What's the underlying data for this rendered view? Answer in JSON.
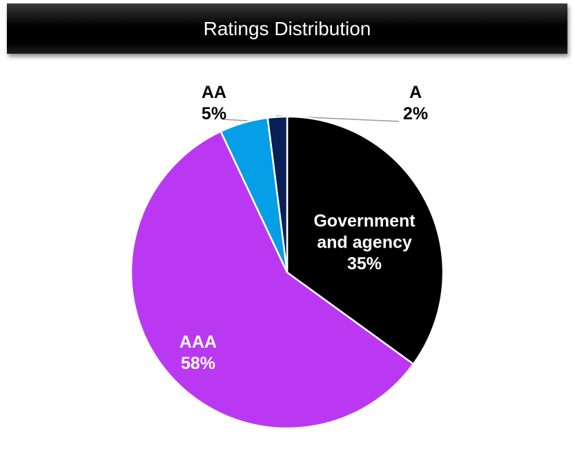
{
  "chart_data": {
    "type": "pie",
    "title": "Ratings Distribution",
    "categories": [
      "Government and agency",
      "AAA",
      "AA",
      "A"
    ],
    "values": [
      35,
      58,
      5,
      2
    ],
    "value_labels": [
      "35%",
      "58%",
      "5%",
      "2%"
    ],
    "colors": [
      "#000000",
      "#bb38f2",
      "#049fe6",
      "#0a1f55"
    ]
  }
}
